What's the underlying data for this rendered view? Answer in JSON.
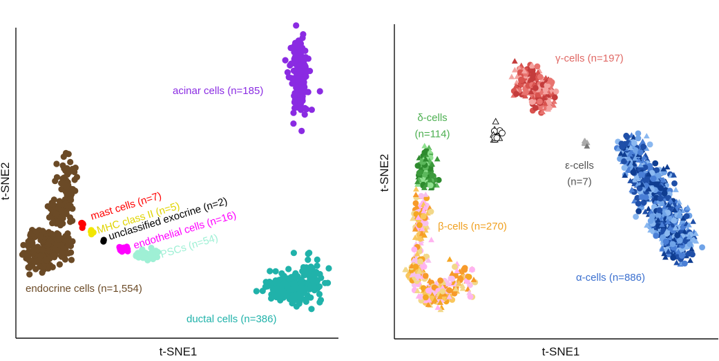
{
  "chart_data": [
    {
      "type": "scatter",
      "panel": "left",
      "xlabel": "t-SNE1",
      "ylabel": "t-SNE2",
      "xlim": [
        0,
        100
      ],
      "ylim": [
        0,
        100
      ],
      "ticks": "none",
      "clusters": [
        {
          "name": "endocrine cells (n=1,554)",
          "label": "endocrine cells (n=1,554)",
          "n": 1554,
          "color": "#6b4a26",
          "blobs": [
            [
              15.5,
              47,
              1.6,
              9,
              70
            ],
            [
              12.5,
              40,
              2.0,
              3.2,
              60
            ],
            [
              8,
              29,
              4.2,
              4.5,
              140
            ],
            [
              13,
              30,
              2.5,
              3,
              40
            ],
            [
              6.5,
              25,
              2.2,
              3.5,
              40
            ]
          ]
        },
        {
          "name": "acinar cells (n=185)",
          "label": "acinar cells (n=185)",
          "n": 185,
          "color": "#8a2be2",
          "blobs": [
            [
              88,
              85.5,
              2.0,
              8,
              160
            ]
          ]
        },
        {
          "name": "ductal cells (n=386)",
          "label": "ductal cells (n=386)",
          "n": 386,
          "color": "#20b2aa",
          "blobs": [
            [
              84.5,
              16,
              4.5,
              3.5,
              170
            ],
            [
              92,
              18,
              2.5,
              5,
              60
            ]
          ]
        },
        {
          "name": "mast cells (n=7)",
          "label": "mast cells (n=7)",
          "n": 7,
          "color": "#ff0000",
          "blobs": [
            [
              20.5,
              36.5,
              0.5,
              0.7,
              7
            ]
          ]
        },
        {
          "name": "MHC class II (n=5)",
          "label": "MHC class II (n=5)",
          "n": 5,
          "color": "#f2e600",
          "blobs": [
            [
              23.2,
              34,
              0.4,
              0.6,
              5
            ]
          ]
        },
        {
          "name": "unclassified exocrine (n=2)",
          "label": "unclassified exocrine (n=2)",
          "n": 2,
          "color": "#000000",
          "blobs": [
            [
              27,
              31.2,
              0.4,
              0.3,
              2
            ]
          ]
        },
        {
          "name": "endothelial cells (n=16)",
          "label": "endothelial cells (n=16)",
          "n": 16,
          "color": "#ff00ff",
          "blobs": [
            [
              33.5,
              28.5,
              1.5,
              0.7,
              16
            ]
          ]
        },
        {
          "name": "PSCs (n=54)",
          "label": "PSCs (n=54)",
          "n": 54,
          "color": "#9ff0d5",
          "blobs": [
            [
              41,
              26.5,
              2.3,
              1.0,
              54
            ]
          ]
        }
      ]
    },
    {
      "type": "scatter",
      "panel": "right",
      "xlabel": "t-SNE1",
      "ylabel": "t-SNE2",
      "xlim": [
        0,
        100
      ],
      "ylim": [
        0,
        100
      ],
      "ticks": "none",
      "clusters": [
        {
          "name": "γ-cells (n=197)",
          "label": "γ-cells (n=197)",
          "n": 197,
          "colors": [
            "#e8736f",
            "#d9534f",
            "#f4a3a0",
            "#c43c3c"
          ],
          "blobs": [
            [
              40.5,
              83,
              2.6,
              3.6,
              80
            ],
            [
              46,
              78,
              2.8,
              4.2,
              120
            ]
          ]
        },
        {
          "name": "δ-cells (n=114)",
          "label": "δ-cells\n(n=114)",
          "n": 114,
          "colors": [
            "#5cb85c",
            "#2e8b2e",
            "#8fe08f",
            "#3c9a3c"
          ],
          "blobs": [
            [
              9.5,
              55,
              1.5,
              3.8,
              60
            ],
            [
              9.5,
              50,
              2.2,
              1.8,
              54
            ]
          ]
        },
        {
          "name": "ε-cells (n=7)",
          "label": "ε-cells\n(n=7)",
          "n": 7,
          "colors": [
            "#777777",
            "#aaaaaa"
          ],
          "blobs": [
            [
              59,
              62.5,
              0.5,
              0.6,
              7
            ]
          ]
        },
        {
          "name": "unlabeled",
          "label": "",
          "n": 14,
          "hollow": true,
          "colors": [
            "#000000"
          ],
          "blobs": [
            [
              31.5,
              65,
              1.3,
              2,
              14
            ]
          ]
        },
        {
          "name": "β-cells (n=270)",
          "label": "β-cells (n=270)",
          "n": 270,
          "colors": [
            "#f5a623",
            "#f9c65c",
            "#f2d889",
            "#ffb3f0",
            "#f7c0ee",
            "#f79a2a"
          ],
          "blobs": [
            [
              8,
              37,
              1.6,
              6,
              80
            ],
            [
              7,
              22,
              1.8,
              5,
              80
            ],
            [
              12,
              14,
              3,
              2.6,
              120
            ],
            [
              20,
              18,
              4,
              4,
              60
            ]
          ]
        },
        {
          "name": "α-cells (n=886)",
          "label": "α-cells (n=886)",
          "n": 886,
          "colors": [
            "#1f4fa8",
            "#4a7fd6",
            "#8ab8f0",
            "#0f3d91",
            "#6fa3e8"
          ],
          "blobs": [
            [
              73.5,
              59,
              3,
              4,
              120
            ],
            [
              79,
              49,
              4.2,
              5,
              260
            ],
            [
              84,
              38,
              4.5,
              5,
              280
            ],
            [
              88,
              30,
              3.5,
              4,
              200
            ]
          ]
        }
      ]
    }
  ]
}
